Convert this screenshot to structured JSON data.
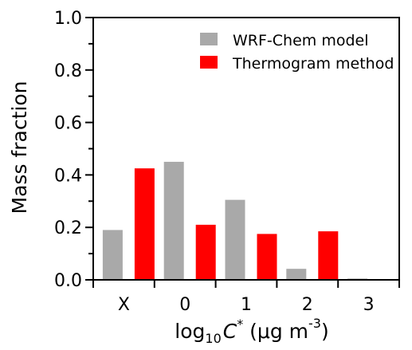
{
  "chart_data": {
    "type": "bar",
    "categories": [
      "X",
      "0",
      "1",
      "2",
      "3"
    ],
    "series": [
      {
        "name": "WRF-Chem model",
        "values": [
          0.19,
          0.45,
          0.305,
          0.042,
          0.005
        ],
        "color": "#a9a9a9"
      },
      {
        "name": "Thermogram method",
        "values": [
          0.425,
          0.21,
          0.175,
          0.185,
          0
        ],
        "color": "#ff0000"
      }
    ],
    "ylabel": "Mass fraction",
    "xlabel": {
      "prefix": "log",
      "sub": "10",
      "var": "C",
      "sup": "*",
      "unit_open": " (μg m",
      "unit_exp": "-3",
      "unit_close": ")"
    },
    "ylim": [
      0,
      1.0
    ],
    "yticks": [
      "0.0",
      "0.2",
      "0.4",
      "0.6",
      "0.8",
      "1.0"
    ],
    "grid": false,
    "legend_position": "top-right"
  }
}
